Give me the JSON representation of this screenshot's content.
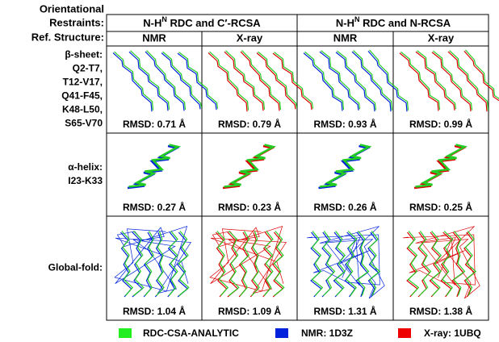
{
  "row_headers": [
    "Orientational",
    "Restraints:",
    "Ref. Structure:"
  ],
  "groups": [
    {
      "pre": "N-H",
      "sup": "N",
      "post": " RDC and C′-RCSA"
    },
    {
      "pre": "N-H",
      "sup": "N",
      "post": " RDC and N-RCSA"
    }
  ],
  "subheaders": [
    "NMR",
    "X-ray",
    "NMR",
    "X-ray"
  ],
  "rows": [
    {
      "label": [
        "β-sheet:",
        "Q2-T7,",
        "T12-V17,",
        "Q41-F45,",
        "K48-L50,",
        "S65-V70"
      ],
      "rmsd": [
        "RMSD: 0.71 Å",
        "RMSD: 0.79 Å",
        "RMSD: 0.93 Å",
        "RMSD: 0.99 Å"
      ]
    },
    {
      "label": [
        "α-helix:",
        "I23-K33"
      ],
      "rmsd": [
        "RMSD: 0.27 Å",
        "RMSD: 0.23 Å",
        "RMSD: 0.26 Å",
        "RMSD: 0.25 Å"
      ]
    },
    {
      "label": [
        "Global-fold:"
      ],
      "rmsd": [
        "RMSD: 1.04 Å",
        "RMSD: 1.09 Å",
        "RMSD: 1.31 Å",
        "RMSD: 1.38 Å"
      ]
    }
  ],
  "legend": [
    "RDC-CSA-ANALYTIC",
    "NMR: 1D3Z",
    "X-ray: 1UBQ"
  ]
}
